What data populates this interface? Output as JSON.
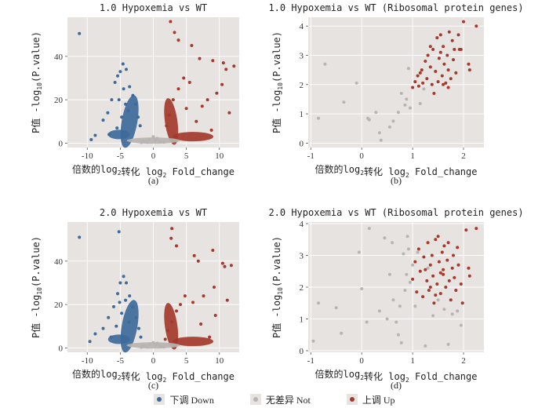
{
  "colors": {
    "panel_bg": "#e6e3e1",
    "grid": "#ffffff",
    "down": "#3e6a9a",
    "not": "#b9b4b1",
    "up": "#a43a2c"
  },
  "legend": [
    {
      "label": "下调 Down",
      "key": "down"
    },
    {
      "label": "无差异 Not",
      "key": "not"
    },
    {
      "label": "上调 Up",
      "key": "up"
    }
  ],
  "chart_data": [
    {
      "type": "scatter",
      "panel_label": "(a)",
      "title": "1.0 Hypoxemia vs WT",
      "xlabel": "倍数的log2转化 log2 Fold_change",
      "ylabel": "P值 -log10(P.value)",
      "xlim": [
        -13,
        13
      ],
      "ylim": [
        -2,
        58
      ],
      "xticks": [
        -10,
        -5,
        0,
        5,
        10
      ],
      "yticks": [
        0,
        20,
        40
      ],
      "series": [
        {
          "name": "Down",
          "points": [
            [
              -11.2,
              50.5
            ],
            [
              -9.4,
              1.6
            ],
            [
              -8.8,
              3.6
            ],
            [
              -7.6,
              10.6
            ],
            [
              -6.9,
              14
            ],
            [
              -6.3,
              20
            ],
            [
              -5.8,
              28
            ],
            [
              -5.4,
              31
            ],
            [
              -5.0,
              33
            ],
            [
              -4.6,
              36.5
            ],
            [
              -4.1,
              34
            ],
            [
              -3.6,
              26
            ],
            [
              -3.1,
              22
            ],
            [
              -2.7,
              18
            ],
            [
              -2.3,
              12
            ],
            [
              -2.0,
              8
            ],
            [
              -6.7,
              4
            ],
            [
              -5.5,
              7
            ],
            [
              -4.8,
              12
            ],
            [
              -4.2,
              18
            ],
            [
              -3.8,
              15
            ],
            [
              -5.2,
              20
            ],
            [
              -4.5,
              25
            ]
          ]
        },
        {
          "name": "Not",
          "points": [
            [
              -1.4,
              1
            ],
            [
              -0.6,
              1.6
            ],
            [
              0.3,
              1.2
            ],
            [
              1.0,
              0.8
            ],
            [
              -0.9,
              0.4
            ],
            [
              0.6,
              2.2
            ],
            [
              -1.8,
              0.3
            ],
            [
              1.6,
              0.5
            ],
            [
              0,
              3
            ]
          ]
        },
        {
          "name": "Up",
          "points": [
            [
              2.6,
              56
            ],
            [
              3.2,
              51
            ],
            [
              3.8,
              47.5
            ],
            [
              5.8,
              45
            ],
            [
              7.0,
              39
            ],
            [
              9.0,
              38
            ],
            [
              10.6,
              37
            ],
            [
              11.0,
              34
            ],
            [
              12.2,
              35.5
            ],
            [
              10.4,
              27
            ],
            [
              9.6,
              23
            ],
            [
              8.2,
              20
            ],
            [
              7.4,
              17
            ],
            [
              5.5,
              28
            ],
            [
              4.6,
              30
            ],
            [
              3.8,
              25
            ],
            [
              3.0,
              20
            ],
            [
              2.4,
              13
            ],
            [
              2.0,
              8
            ],
            [
              6.5,
              10
            ],
            [
              8.8,
              6
            ],
            [
              11.5,
              14
            ],
            [
              5.0,
              16
            ]
          ]
        }
      ]
    },
    {
      "type": "scatter",
      "panel_label": "(b)",
      "title": "1.0 Hypoxemia vs WT (Ribosomal protein genes)",
      "xlabel": "倍数的log2转化 log2 Fold_change",
      "ylabel": "P值 -log10(P.value)",
      "xlim": [
        -1.05,
        2.4
      ],
      "ylim": [
        -0.15,
        4.3
      ],
      "xticks": [
        -1,
        0,
        1,
        2
      ],
      "yticks": [
        0,
        1,
        2,
        3,
        4
      ],
      "series": [
        {
          "name": "Down",
          "points": []
        },
        {
          "name": "Not",
          "points": [
            [
              -0.85,
              0.85
            ],
            [
              -0.72,
              2.7
            ],
            [
              -0.35,
              1.4
            ],
            [
              -0.1,
              2.05
            ],
            [
              0.12,
              0.85
            ],
            [
              0.15,
              0.8
            ],
            [
              0.28,
              1.05
            ],
            [
              0.35,
              0.35
            ],
            [
              0.38,
              0.1
            ],
            [
              0.55,
              0.55
            ],
            [
              0.62,
              0.75
            ],
            [
              0.72,
              1.05
            ],
            [
              0.78,
              1.7
            ],
            [
              0.85,
              1.3
            ],
            [
              0.88,
              1.5
            ],
            [
              0.92,
              2.55
            ],
            [
              0.95,
              1.2
            ],
            [
              1.05,
              2.1
            ],
            [
              1.15,
              1.35
            ],
            [
              1.22,
              1.85
            ]
          ]
        },
        {
          "name": "Up",
          "points": [
            [
              1.0,
              1.9
            ],
            [
              1.05,
              2.1
            ],
            [
              1.1,
              2.3
            ],
            [
              1.12,
              1.95
            ],
            [
              1.18,
              2.5
            ],
            [
              1.2,
              2.05
            ],
            [
              1.25,
              2.8
            ],
            [
              1.28,
              2.2
            ],
            [
              1.3,
              3.0
            ],
            [
              1.35,
              2.6
            ],
            [
              1.38,
              2.0
            ],
            [
              1.4,
              3.2
            ],
            [
              1.45,
              2.45
            ],
            [
              1.48,
              3.6
            ],
            [
              1.5,
              2.1
            ],
            [
              1.52,
              2.9
            ],
            [
              1.55,
              3.7
            ],
            [
              1.58,
              2.3
            ],
            [
              1.6,
              3.3
            ],
            [
              1.62,
              2.7
            ],
            [
              1.65,
              2.05
            ],
            [
              1.68,
              3.0
            ],
            [
              1.7,
              2.5
            ],
            [
              1.72,
              3.8
            ],
            [
              1.75,
              2.2
            ],
            [
              1.78,
              3.5
            ],
            [
              1.8,
              2.85
            ],
            [
              1.82,
              3.2
            ],
            [
              1.85,
              2.4
            ],
            [
              1.9,
              3.7
            ],
            [
              1.92,
              3.2
            ],
            [
              1.95,
              3.2
            ],
            [
              2.0,
              4.15
            ],
            [
              2.1,
              2.7
            ],
            [
              2.12,
              2.5
            ],
            [
              2.25,
              4.0
            ],
            [
              1.35,
              3.3
            ],
            [
              1.6,
              2.0
            ],
            [
              1.15,
              2.4
            ],
            [
              1.42,
              1.7
            ],
            [
              1.55,
              3.1
            ],
            [
              1.7,
              1.9
            ]
          ]
        }
      ]
    },
    {
      "type": "scatter",
      "panel_label": "(c)",
      "title": "2.0 Hypoxemia vs WT",
      "xlabel": "倍数的log2转化 log2 Fold_change",
      "ylabel": "P值 -log10(P.value)",
      "xlim": [
        -13,
        13
      ],
      "ylim": [
        -2,
        58
      ],
      "xticks": [
        -10,
        -5,
        0,
        5,
        10
      ],
      "yticks": [
        0,
        20,
        40
      ],
      "series": [
        {
          "name": "Down",
          "points": [
            [
              -11.2,
              51
            ],
            [
              -5.2,
              53.5
            ],
            [
              -9.6,
              3
            ],
            [
              -8.8,
              6.5
            ],
            [
              -7.6,
              9
            ],
            [
              -6.8,
              14
            ],
            [
              -6.0,
              19
            ],
            [
              -5.4,
              25
            ],
            [
              -5.0,
              30
            ],
            [
              -4.5,
              33
            ],
            [
              -4.1,
              30
            ],
            [
              -3.6,
              24
            ],
            [
              -3.1,
              19
            ],
            [
              -2.6,
              14
            ],
            [
              -2.2,
              9
            ],
            [
              -1.9,
              5
            ],
            [
              -6.4,
              5
            ],
            [
              -5.6,
              10
            ],
            [
              -4.8,
              16
            ],
            [
              -4.2,
              22
            ],
            [
              -3.7,
              12
            ],
            [
              -5.1,
              21
            ]
          ]
        },
        {
          "name": "Not",
          "points": [
            [
              -1.4,
              1
            ],
            [
              -0.6,
              1.6
            ],
            [
              0.3,
              1.2
            ],
            [
              1.0,
              0.8
            ],
            [
              -0.9,
              0.4
            ],
            [
              0.6,
              2.2
            ],
            [
              -1.8,
              0.3
            ],
            [
              1.6,
              0.5
            ],
            [
              0,
              2.5
            ]
          ]
        },
        {
          "name": "Up",
          "points": [
            [
              2.8,
              55
            ],
            [
              2.7,
              50.5
            ],
            [
              3.5,
              47
            ],
            [
              6.2,
              42.5
            ],
            [
              6.8,
              40
            ],
            [
              9.0,
              45
            ],
            [
              10.5,
              39
            ],
            [
              10.8,
              37.5
            ],
            [
              11.8,
              38
            ],
            [
              9.2,
              28
            ],
            [
              7.6,
              24
            ],
            [
              6.0,
              21
            ],
            [
              4.8,
              24
            ],
            [
              4.1,
              20
            ],
            [
              3.5,
              17
            ],
            [
              2.8,
              12
            ],
            [
              2.2,
              8
            ],
            [
              1.8,
              4
            ],
            [
              7.2,
              11
            ],
            [
              9.4,
              15
            ],
            [
              11.2,
              22
            ],
            [
              8.5,
              5
            ]
          ]
        }
      ]
    },
    {
      "type": "scatter",
      "panel_label": "(d)",
      "title": "2.0 Hypoxemia vs WT (Ribosomal protein genes)",
      "xlabel": "倍数的log2转化 log2 Fold_change",
      "ylabel": "P值 -log10(P.value)",
      "xlim": [
        -1.05,
        2.4
      ],
      "ylim": [
        -0.05,
        4.05
      ],
      "xticks": [
        -1,
        0,
        1,
        2
      ],
      "yticks": [
        0,
        1,
        2,
        3,
        4
      ],
      "series": [
        {
          "name": "Down",
          "points": []
        },
        {
          "name": "Not",
          "points": [
            [
              -0.95,
              0.3
            ],
            [
              -0.85,
              1.5
            ],
            [
              -0.5,
              1.35
            ],
            [
              -0.4,
              0.55
            ],
            [
              -0.05,
              3.1
            ],
            [
              0.0,
              1.95
            ],
            [
              0.1,
              0.9
            ],
            [
              0.15,
              3.85
            ],
            [
              0.35,
              1.25
            ],
            [
              0.45,
              3.55
            ],
            [
              0.5,
              1.0
            ],
            [
              0.55,
              2.4
            ],
            [
              0.6,
              3.4
            ],
            [
              0.62,
              1.6
            ],
            [
              0.68,
              0.9
            ],
            [
              0.72,
              0.5
            ],
            [
              0.75,
              1.4
            ],
            [
              0.78,
              0.25
            ],
            [
              0.82,
              3.05
            ],
            [
              0.85,
              1.9
            ],
            [
              0.88,
              2.4
            ],
            [
              0.9,
              3.6
            ],
            [
              0.92,
              3.2
            ],
            [
              0.95,
              2.15
            ],
            [
              1.0,
              2.7
            ],
            [
              1.05,
              1.4
            ],
            [
              1.1,
              3.1
            ],
            [
              1.25,
              0.15
            ],
            [
              1.3,
              2.6
            ],
            [
              1.4,
              1.1
            ],
            [
              1.5,
              1.6
            ],
            [
              1.62,
              1.3
            ],
            [
              1.7,
              0.2
            ],
            [
              1.78,
              1.15
            ],
            [
              1.88,
              1.25
            ],
            [
              1.95,
              0.8
            ]
          ]
        },
        {
          "name": "Up",
          "points": [
            [
              1.0,
              2.25
            ],
            [
              1.05,
              2.8
            ],
            [
              1.08,
              1.85
            ],
            [
              1.12,
              3.2
            ],
            [
              1.15,
              2.5
            ],
            [
              1.2,
              1.7
            ],
            [
              1.22,
              2.95
            ],
            [
              1.28,
              2.2
            ],
            [
              1.3,
              3.4
            ],
            [
              1.32,
              1.9
            ],
            [
              1.35,
              2.7
            ],
            [
              1.38,
              3.0
            ],
            [
              1.4,
              2.35
            ],
            [
              1.42,
              1.5
            ],
            [
              1.45,
              3.5
            ],
            [
              1.48,
              2.1
            ],
            [
              1.5,
              3.6
            ],
            [
              1.52,
              2.8
            ],
            [
              1.55,
              1.8
            ],
            [
              1.58,
              3.1
            ],
            [
              1.6,
              2.4
            ],
            [
              1.62,
              3.3
            ],
            [
              1.65,
              2.0
            ],
            [
              1.68,
              2.85
            ],
            [
              1.7,
              3.4
            ],
            [
              1.72,
              2.2
            ],
            [
              1.75,
              1.6
            ],
            [
              1.78,
              2.6
            ],
            [
              1.8,
              3.0
            ],
            [
              1.82,
              2.3
            ],
            [
              1.85,
              1.9
            ],
            [
              1.88,
              3.25
            ],
            [
              1.9,
              2.7
            ],
            [
              1.95,
              2.1
            ],
            [
              1.98,
              1.5
            ],
            [
              2.05,
              3.8
            ],
            [
              2.1,
              2.6
            ],
            [
              2.12,
              2.35
            ],
            [
              2.25,
              3.85
            ],
            [
              1.35,
              2.0
            ],
            [
              1.25,
              2.55
            ],
            [
              1.6,
              2.55
            ],
            [
              1.45,
              1.75
            ],
            [
              1.55,
              2.45
            ]
          ]
        }
      ]
    }
  ]
}
